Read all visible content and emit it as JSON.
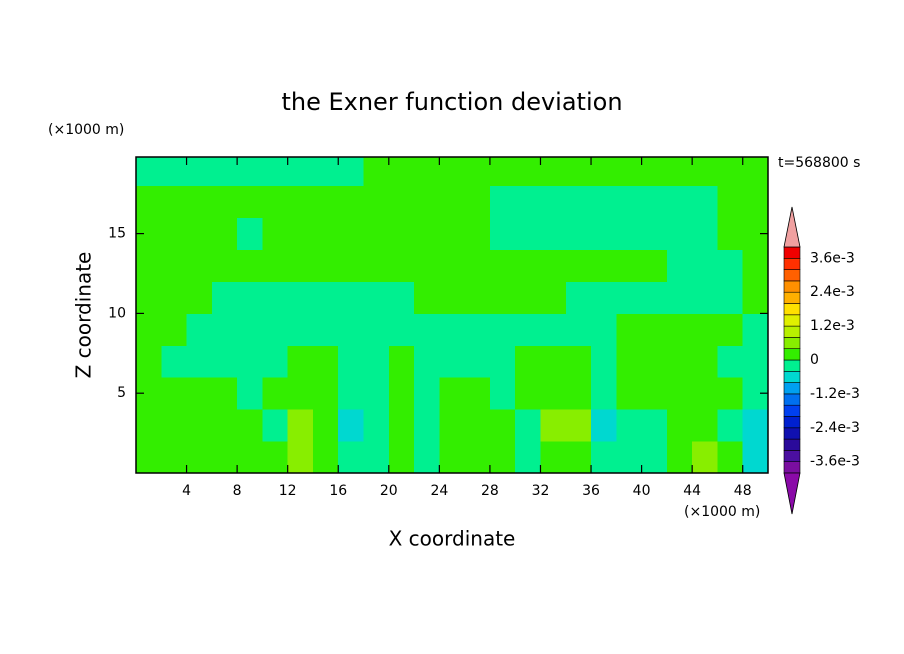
{
  "chart_data": {
    "type": "contour",
    "title": "the Exner function deviation",
    "xlabel": "X coordinate",
    "ylabel": "Z coordinate",
    "x_unit": "(×1000 m)",
    "y_unit": "(×1000 m)",
    "time_label": "t=568800 s",
    "xlim": [
      0,
      50
    ],
    "ylim": [
      0,
      19.8
    ],
    "xticks": [
      4,
      8,
      12,
      16,
      20,
      24,
      28,
      32,
      36,
      40,
      44,
      48
    ],
    "yticks": [
      5,
      10,
      15
    ],
    "x": [
      1,
      3,
      5,
      7,
      9,
      11,
      13,
      15,
      17,
      19,
      21,
      23,
      25,
      27,
      29,
      31,
      33,
      35,
      37,
      39,
      41,
      43,
      45,
      47,
      49
    ],
    "y": [
      1,
      3,
      5,
      7,
      9,
      11,
      13,
      15,
      17,
      19
    ],
    "z": [
      [
        0.0002,
        0.0002,
        0.0002,
        0.0002,
        0.0002,
        0.0002,
        0.0006,
        0.0002,
        -0.0002,
        -0.0002,
        0.0002,
        -0.0002,
        0.0002,
        0.0002,
        0.0002,
        -0.0002,
        0.0002,
        0.0002,
        -0.0002,
        -0.0002,
        -0.0002,
        0.0002,
        0.0006,
        0.0002,
        -0.0006
      ],
      [
        0.0002,
        0.0002,
        0.0002,
        0.0002,
        0.0002,
        -0.0002,
        0.0006,
        0.0002,
        -0.0006,
        -0.0002,
        0.0002,
        -0.0002,
        0.0002,
        0.0002,
        0.0002,
        -0.0002,
        0.0006,
        0.0006,
        -0.0006,
        -0.0002,
        -0.0002,
        0.0002,
        0.0002,
        -0.0002,
        -0.0006
      ],
      [
        0.0002,
        0.0002,
        0.0002,
        0.0002,
        -0.0002,
        0.0002,
        0.0002,
        0.0002,
        -0.0002,
        -0.0002,
        0.0002,
        -0.0002,
        0.0002,
        0.0002,
        -0.0002,
        0.0002,
        0.0002,
        0.0002,
        -0.0002,
        0.0002,
        0.0002,
        0.0002,
        0.0002,
        0.0002,
        -0.0002
      ],
      [
        0.0002,
        -0.0002,
        -0.0002,
        -0.0002,
        -0.0002,
        -0.0002,
        0.0002,
        0.0002,
        -0.0002,
        -0.0002,
        0.0002,
        -0.0002,
        -0.0002,
        -0.0002,
        -0.0002,
        0.0002,
        0.0002,
        0.0002,
        -0.0002,
        0.0002,
        0.0002,
        0.0002,
        0.0002,
        -0.0002,
        -0.0002
      ],
      [
        0.0002,
        0.0002,
        -0.0002,
        -0.0002,
        -0.0002,
        -0.0002,
        -0.0002,
        -0.0002,
        -0.0002,
        -0.0002,
        -0.0002,
        -0.0002,
        -0.0002,
        -0.0002,
        -0.0002,
        -0.0002,
        -0.0002,
        -0.0002,
        -0.0002,
        0.0002,
        0.0002,
        0.0002,
        0.0002,
        0.0002,
        -0.0002
      ],
      [
        0.0002,
        0.0002,
        0.0002,
        -0.0002,
        -0.0002,
        -0.0002,
        -0.0002,
        -0.0002,
        -0.0002,
        -0.0002,
        -0.0002,
        0.0002,
        0.0002,
        0.0002,
        0.0002,
        0.0002,
        0.0002,
        -0.0002,
        -0.0002,
        -0.0002,
        -0.0002,
        -0.0002,
        -0.0002,
        -0.0002,
        0.0002
      ],
      [
        0.0002,
        0.0002,
        0.0002,
        0.0002,
        0.0002,
        0.0002,
        0.0002,
        0.0002,
        0.0002,
        0.0002,
        0.0002,
        0.0002,
        0.0002,
        0.0002,
        0.0002,
        0.0002,
        0.0002,
        0.0002,
        0.0002,
        0.0002,
        0.0002,
        -0.0002,
        -0.0002,
        -0.0002,
        0.0002
      ],
      [
        0.0002,
        0.0002,
        0.0002,
        0.0002,
        -0.0002,
        0.0002,
        0.0002,
        0.0002,
        0.0002,
        0.0002,
        0.0002,
        0.0002,
        0.0002,
        0.0002,
        -0.0002,
        -0.0002,
        -0.0002,
        -0.0002,
        -0.0002,
        -0.0002,
        -0.0002,
        -0.0002,
        -0.0002,
        0.0002,
        0.0002
      ],
      [
        0.0002,
        0.0002,
        0.0002,
        0.0002,
        0.0002,
        0.0002,
        0.0002,
        0.0002,
        0.0002,
        0.0002,
        0.0002,
        0.0002,
        0.0002,
        0.0002,
        -0.0002,
        -0.0002,
        -0.0002,
        -0.0002,
        -0.0002,
        -0.0002,
        -0.0002,
        -0.0002,
        -0.0002,
        0.0002,
        0.0002
      ],
      [
        -0.0002,
        -0.0002,
        -0.0002,
        -0.0002,
        -0.0002,
        -0.0002,
        -0.0002,
        -0.0002,
        -0.0002,
        0.0002,
        0.0002,
        0.0002,
        0.0002,
        0.0002,
        0.0002,
        0.0002,
        0.0002,
        0.0002,
        0.0002,
        0.0002,
        0.0002,
        0.0002,
        0.0002,
        0.0002,
        0.0002
      ]
    ],
    "levels": [
      -0.004,
      -0.0036,
      -0.0032,
      -0.0028,
      -0.0024,
      -0.002,
      -0.0016,
      -0.0012,
      -0.0008,
      -0.0004,
      0,
      0.0004,
      0.0008,
      0.0012,
      0.0016,
      0.002,
      0.0024,
      0.0028,
      0.0032,
      0.0036,
      0.004
    ],
    "colors": [
      "#7a0ea0",
      "#4b0fa0",
      "#2a0a9a",
      "#1010b0",
      "#0020d0",
      "#0040f0",
      "#0070f0",
      "#00a0f0",
      "#00d8d0",
      "#00f090",
      "#33ee00",
      "#88ee00",
      "#b8f000",
      "#e0f000",
      "#ffe000",
      "#ffb000",
      "#ff9000",
      "#ff6000",
      "#ff3000",
      "#f00000"
    ],
    "under_color": "#8a0aa8",
    "over_color": "#f0a0a0",
    "cbar_ticks": [
      {
        "value": 0.0036,
        "label": "3.6e-3"
      },
      {
        "value": 0.0024,
        "label": "2.4e-3"
      },
      {
        "value": 0.0012,
        "label": "1.2e-3"
      },
      0,
      {
        "value": -0.0012,
        "label": "-1.2e-3"
      },
      {
        "value": -0.0024,
        "label": "-2.4e-3"
      },
      {
        "value": -0.0036,
        "label": "-3.6e-3"
      }
    ]
  }
}
